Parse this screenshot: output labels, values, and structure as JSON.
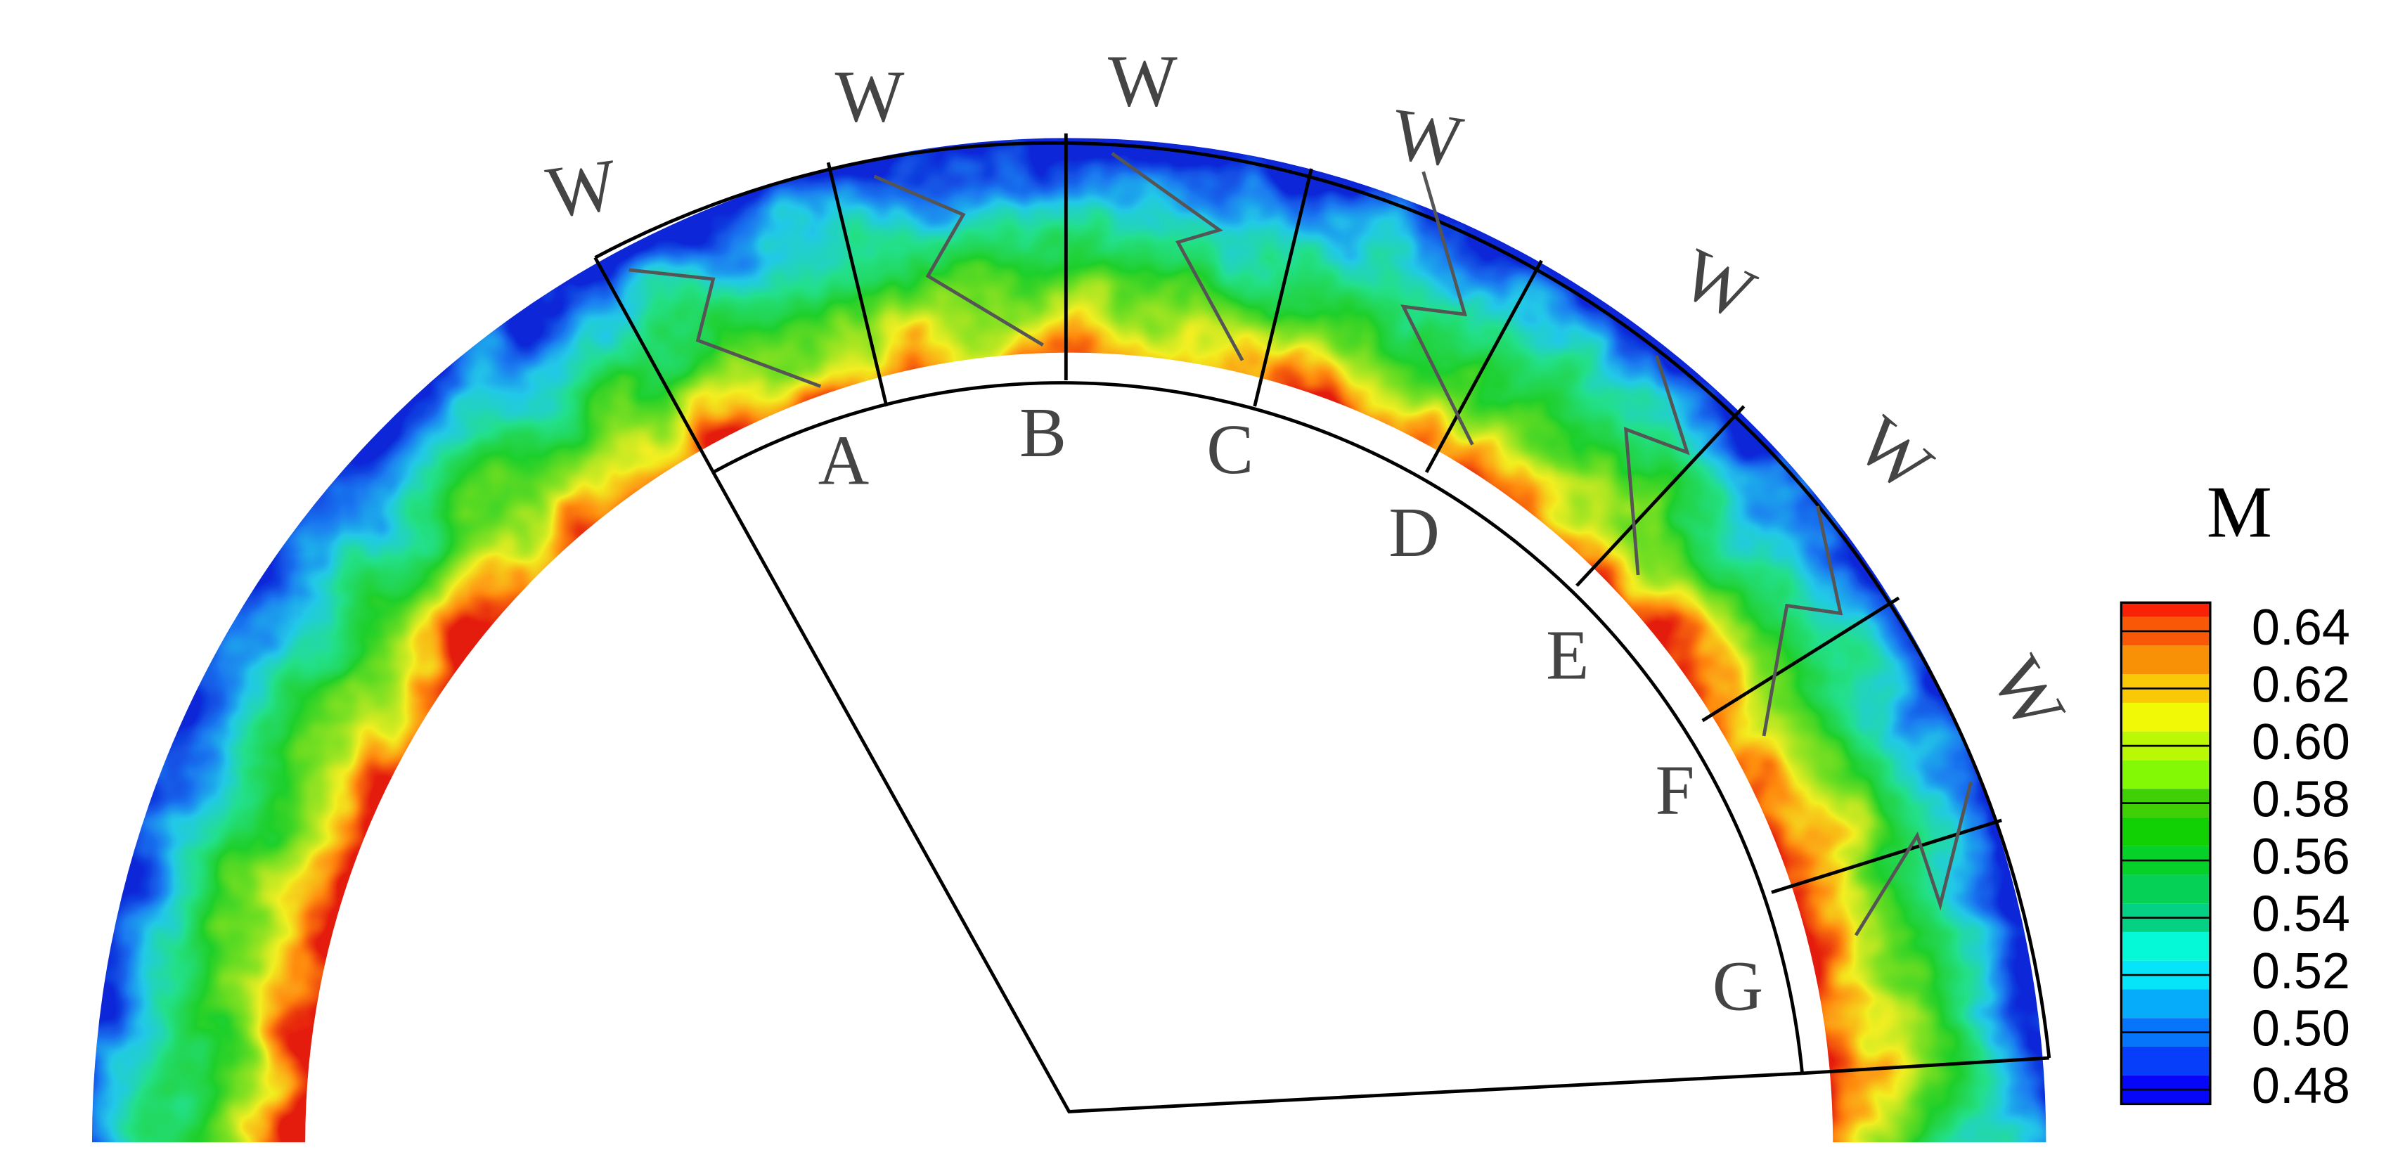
{
  "colorbar": {
    "title": "M",
    "ticks": [
      0.64,
      {
        "value": 0.62,
        "label": "0.62"
      },
      {
        "value": 0.6,
        "label": "0.60"
      },
      0.58,
      0.56,
      0.54,
      0.52,
      {
        "value": 0.5,
        "label": "0.50"
      },
      0.48
    ],
    "lim": [
      0.475,
      0.65
    ]
  },
  "section_labels": [
    "A",
    "B",
    "C",
    "D",
    "E",
    "F",
    "G"
  ],
  "blade_labels": [
    "W",
    "W",
    "W",
    "W",
    "W",
    "W",
    "W"
  ]
}
